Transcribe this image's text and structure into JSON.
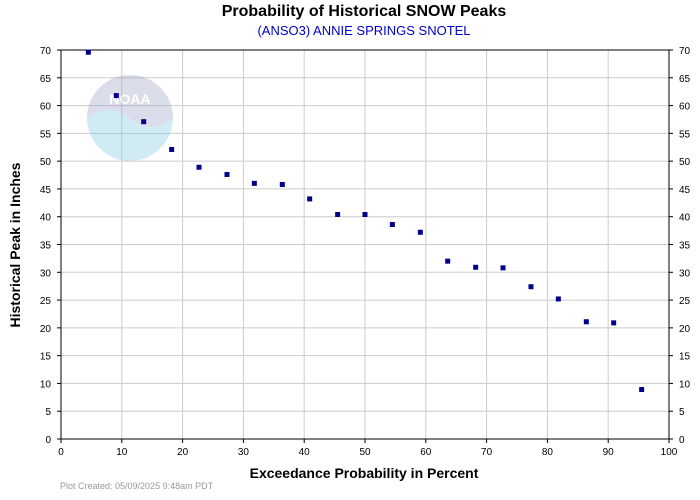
{
  "header": {
    "title": "Probability of Historical SNOW Peaks",
    "subtitle": "(ANSO3) ANNIE SPRINGS SNOTEL"
  },
  "footer": {
    "plot_created": "Plot Created: 05/09/2025 9:48am PDT"
  },
  "logo": {
    "text": "NOAA"
  },
  "colors": {
    "marker": "#00008b",
    "subtitle": "#0000cc",
    "grid": "#cccccc"
  },
  "chart_data": {
    "type": "scatter",
    "title": "Probability of Historical SNOW Peaks",
    "subtitle": "(ANSO3) ANNIE SPRINGS SNOTEL",
    "xlabel": "Exceedance Probability in Percent",
    "ylabel": "Historical Peak in Inches",
    "xlim": [
      0,
      100
    ],
    "ylim": [
      0,
      70
    ],
    "x_ticks": [
      0,
      10,
      20,
      30,
      40,
      50,
      60,
      70,
      80,
      90,
      100
    ],
    "y_ticks": [
      0,
      5,
      10,
      15,
      20,
      25,
      30,
      35,
      40,
      45,
      50,
      55,
      60,
      65,
      70
    ],
    "y_ticks_right": true,
    "grid": true,
    "legend": "none",
    "series": [
      {
        "x": [
          4.5,
          9.1,
          13.6,
          18.2,
          22.7,
          27.3,
          31.8,
          36.4,
          40.9,
          45.5,
          50.0,
          54.5,
          59.1,
          63.6,
          68.2,
          72.7,
          77.3,
          81.8,
          86.4,
          90.9,
          95.5
        ],
        "y": [
          69.6,
          61.8,
          57.1,
          52.1,
          48.9,
          47.6,
          46.0,
          45.8,
          43.2,
          40.4,
          40.4,
          38.6,
          37.2,
          32.0,
          30.9,
          30.8,
          27.4,
          25.2,
          21.1,
          20.9,
          8.9
        ]
      }
    ]
  }
}
